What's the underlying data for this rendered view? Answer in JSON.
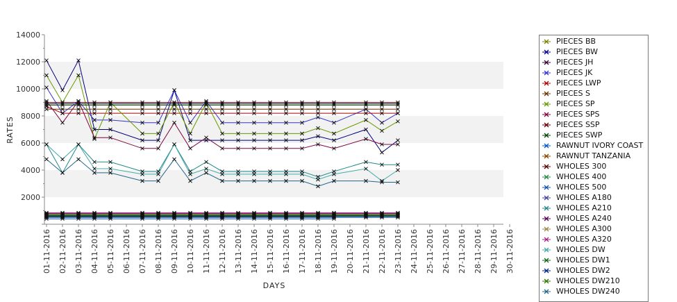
{
  "chart_data": {
    "type": "line",
    "xlabel": "DAYS",
    "ylabel": "RATES",
    "ylim": [
      0,
      14000
    ],
    "yticks": [
      2000,
      4000,
      6000,
      8000,
      10000,
      12000,
      14000
    ],
    "grid": "alternating horizontal bands",
    "legend_position": "right",
    "categories": [
      "01-11-2016",
      "02-11-2016",
      "03-11-2016",
      "04-11-2016",
      "05-11-2016",
      "06-11-2016",
      "07-11-2016",
      "08-11-2016",
      "09-11-2016",
      "10-11-2016",
      "11-11-2016",
      "12-11-2016",
      "13-11-2016",
      "14-11-2016",
      "15-11-2016",
      "16-11-2016",
      "17-11-2016",
      "18-11-2016",
      "19-11-2016",
      "20-11-2016",
      "21-11-2016",
      "22-11-2016",
      "23-11-2016",
      "24-11-2016",
      "25-11-2016",
      "26-11-2016",
      "27-11-2016",
      "28-11-2016",
      "29-11-2016",
      "30-11-2016"
    ],
    "series": [
      {
        "name": "PIECES BB",
        "color": "#808000",
        "values": [
          700,
          700,
          700,
          700,
          700,
          null,
          700,
          700,
          700,
          700,
          700,
          700,
          700,
          700,
          700,
          700,
          700,
          700,
          700,
          null,
          700,
          700,
          700,
          null,
          null,
          null,
          null,
          null,
          null,
          null
        ]
      },
      {
        "name": "PIECES BW",
        "color": "#000080",
        "values": [
          12100,
          9900,
          12100,
          7000,
          7000,
          null,
          6200,
          6200,
          9900,
          6200,
          6200,
          6200,
          6200,
          6200,
          6200,
          6200,
          6200,
          6500,
          6200,
          null,
          7000,
          5300,
          6200,
          null,
          null,
          null,
          null,
          null,
          null,
          null
        ]
      },
      {
        "name": "PIECES JH",
        "color": "#330033",
        "values": [
          8900,
          8900,
          8900,
          8900,
          8900,
          null,
          8900,
          8900,
          8900,
          8900,
          8900,
          8900,
          8900,
          8900,
          8900,
          8900,
          8900,
          8900,
          8900,
          null,
          8900,
          8900,
          8900,
          null,
          null,
          null,
          null,
          null,
          null,
          null
        ]
      },
      {
        "name": "PIECES JK",
        "color": "#3333cc",
        "values": [
          10100,
          8200,
          9100,
          7700,
          7700,
          null,
          7500,
          7500,
          9900,
          7500,
          9100,
          7500,
          7500,
          7500,
          7500,
          7500,
          7500,
          7900,
          7500,
          null,
          8500,
          7500,
          8200,
          null,
          null,
          null,
          null,
          null,
          null,
          null
        ]
      },
      {
        "name": "PIECES LWP",
        "color": "#aa0000",
        "values": [
          8700,
          8200,
          8200,
          8200,
          8200,
          null,
          8200,
          8200,
          8200,
          8200,
          8200,
          8200,
          8200,
          8200,
          8200,
          8200,
          8200,
          8200,
          8200,
          null,
          8200,
          8200,
          8200,
          null,
          null,
          null,
          null,
          null,
          null,
          null
        ]
      },
      {
        "name": "PIECES S",
        "color": "#663300",
        "values": [
          8500,
          8500,
          8500,
          8500,
          8500,
          null,
          8500,
          8500,
          8500,
          8500,
          8500,
          8500,
          8500,
          8500,
          8500,
          8500,
          8500,
          8500,
          8500,
          null,
          8500,
          8500,
          8500,
          null,
          null,
          null,
          null,
          null,
          null,
          null
        ]
      },
      {
        "name": "PIECES SP",
        "color": "#669900",
        "values": [
          11000,
          9000,
          11000,
          6300,
          9000,
          null,
          6700,
          6700,
          9000,
          6700,
          9000,
          6700,
          6700,
          6700,
          6700,
          6700,
          6700,
          7100,
          6700,
          null,
          7700,
          6900,
          7600,
          null,
          null,
          null,
          null,
          null,
          null,
          null
        ]
      },
      {
        "name": "PIECES SPS",
        "color": "#800040",
        "values": [
          9100,
          7500,
          9100,
          6400,
          6400,
          null,
          5600,
          5600,
          7500,
          5600,
          6400,
          5600,
          5600,
          5600,
          5600,
          5600,
          5600,
          5900,
          5600,
          null,
          6300,
          5900,
          5900,
          null,
          null,
          null,
          null,
          null,
          null,
          null
        ]
      },
      {
        "name": "PIECES SSP",
        "color": "#660000",
        "values": [
          9000,
          9000,
          9000,
          9000,
          9000,
          null,
          9000,
          9000,
          9000,
          9000,
          9000,
          9000,
          9000,
          9000,
          9000,
          9000,
          9000,
          9000,
          9000,
          null,
          9000,
          9000,
          9000,
          null,
          null,
          null,
          null,
          null,
          null,
          null
        ]
      },
      {
        "name": "PIECES SWP",
        "color": "#004400",
        "values": [
          8800,
          8800,
          8800,
          8800,
          8800,
          null,
          8800,
          8800,
          8800,
          8800,
          8800,
          8800,
          8800,
          8800,
          8800,
          8800,
          8800,
          8800,
          8800,
          null,
          8800,
          8800,
          8800,
          null,
          null,
          null,
          null,
          null,
          null,
          null
        ]
      },
      {
        "name": "RAWNUT IVORY COAST",
        "color": "#0055cc",
        "values": [
          400,
          400,
          400,
          400,
          400,
          null,
          400,
          400,
          400,
          400,
          400,
          400,
          400,
          400,
          400,
          400,
          400,
          400,
          400,
          null,
          null,
          null,
          null,
          null,
          null,
          null,
          null,
          null,
          null,
          null
        ]
      },
      {
        "name": "RAWNUT TANZANIA",
        "color": "#884400",
        "values": [
          550,
          550,
          550,
          550,
          550,
          null,
          550,
          550,
          550,
          550,
          550,
          550,
          550,
          550,
          550,
          550,
          550,
          550,
          550,
          null,
          null,
          null,
          null,
          null,
          null,
          null,
          null,
          null,
          null,
          null
        ]
      },
      {
        "name": "WHOLES 300",
        "color": "#550000",
        "values": [
          600,
          600,
          600,
          600,
          600,
          null,
          600,
          600,
          600,
          600,
          600,
          600,
          600,
          600,
          600,
          600,
          600,
          600,
          600,
          null,
          600,
          600,
          600,
          null,
          null,
          null,
          null,
          null,
          null,
          null
        ]
      },
      {
        "name": "WHOLES 400",
        "color": "#228844",
        "values": [
          650,
          650,
          650,
          650,
          650,
          null,
          650,
          650,
          650,
          650,
          650,
          650,
          650,
          650,
          650,
          650,
          650,
          650,
          650,
          null,
          650,
          650,
          650,
          null,
          null,
          null,
          null,
          null,
          null,
          null
        ]
      },
      {
        "name": "WHOLES 500",
        "color": "#1155aa",
        "values": [
          500,
          500,
          500,
          500,
          500,
          null,
          500,
          500,
          500,
          500,
          500,
          500,
          500,
          500,
          500,
          500,
          500,
          500,
          500,
          null,
          500,
          500,
          500,
          null,
          null,
          null,
          null,
          null,
          null,
          null
        ]
      },
      {
        "name": "WHOLES A180",
        "color": "#444499",
        "values": [
          700,
          700,
          700,
          700,
          700,
          null,
          700,
          700,
          700,
          700,
          700,
          700,
          700,
          700,
          700,
          700,
          700,
          700,
          700,
          null,
          700,
          700,
          700,
          null,
          null,
          null,
          null,
          null,
          null,
          null
        ]
      },
      {
        "name": "WHOLES A210",
        "color": "#228888",
        "values": [
          5900,
          3800,
          5900,
          4600,
          4600,
          null,
          3900,
          3900,
          5900,
          3900,
          4600,
          3900,
          3900,
          3900,
          3900,
          3900,
          3900,
          3500,
          3900,
          null,
          4600,
          4400,
          4400,
          null,
          null,
          null,
          null,
          null,
          null,
          null
        ]
      },
      {
        "name": "WHOLES A240",
        "color": "#550055",
        "values": [
          800,
          800,
          800,
          800,
          800,
          null,
          800,
          800,
          800,
          800,
          800,
          800,
          800,
          800,
          800,
          800,
          800,
          800,
          800,
          null,
          800,
          800,
          800,
          null,
          null,
          null,
          null,
          null,
          null,
          null
        ]
      },
      {
        "name": "WHOLES A300",
        "color": "#998844",
        "values": [
          750,
          750,
          750,
          750,
          750,
          null,
          750,
          750,
          750,
          750,
          750,
          750,
          750,
          750,
          750,
          750,
          750,
          750,
          750,
          null,
          750,
          750,
          750,
          null,
          null,
          null,
          null,
          null,
          null,
          null
        ]
      },
      {
        "name": "WHOLES A320",
        "color": "#aa2288",
        "values": [
          850,
          850,
          850,
          850,
          850,
          null,
          850,
          850,
          850,
          850,
          850,
          850,
          850,
          850,
          850,
          850,
          850,
          850,
          850,
          null,
          850,
          850,
          850,
          null,
          null,
          null,
          null,
          null,
          null,
          null
        ]
      },
      {
        "name": "WHOLES DW",
        "color": "#44aaaa",
        "values": [
          5900,
          4800,
          5900,
          4100,
          4100,
          null,
          3700,
          3700,
          5900,
          3700,
          4100,
          3700,
          3700,
          3700,
          3700,
          3700,
          3700,
          3300,
          3700,
          null,
          4100,
          3200,
          4000,
          null,
          null,
          null,
          null,
          null,
          null,
          null
        ]
      },
      {
        "name": "WHOLES DW1",
        "color": "#116611",
        "values": [
          620,
          620,
          620,
          620,
          620,
          null,
          620,
          620,
          620,
          620,
          620,
          620,
          620,
          620,
          620,
          620,
          620,
          620,
          620,
          null,
          620,
          620,
          620,
          null,
          null,
          null,
          null,
          null,
          null,
          null
        ]
      },
      {
        "name": "WHOLES DW2",
        "color": "#002288",
        "values": [
          580,
          580,
          580,
          580,
          580,
          null,
          580,
          580,
          580,
          580,
          580,
          580,
          580,
          580,
          580,
          580,
          580,
          580,
          580,
          null,
          580,
          580,
          580,
          null,
          null,
          null,
          null,
          null,
          null,
          null
        ]
      },
      {
        "name": "WHOLES DW210",
        "color": "#337700",
        "values": [
          680,
          680,
          680,
          680,
          680,
          null,
          680,
          680,
          680,
          680,
          680,
          680,
          680,
          680,
          680,
          680,
          680,
          680,
          680,
          null,
          680,
          680,
          680,
          null,
          null,
          null,
          null,
          null,
          null,
          null
        ]
      },
      {
        "name": "WHOLES DW240",
        "color": "#226688",
        "values": [
          4800,
          3800,
          4800,
          3800,
          3800,
          null,
          3200,
          3200,
          4800,
          3200,
          3800,
          3200,
          3200,
          3200,
          3200,
          3200,
          3200,
          2800,
          3200,
          null,
          3200,
          3100,
          3100,
          null,
          null,
          null,
          null,
          null,
          null,
          null
        ]
      }
    ]
  }
}
